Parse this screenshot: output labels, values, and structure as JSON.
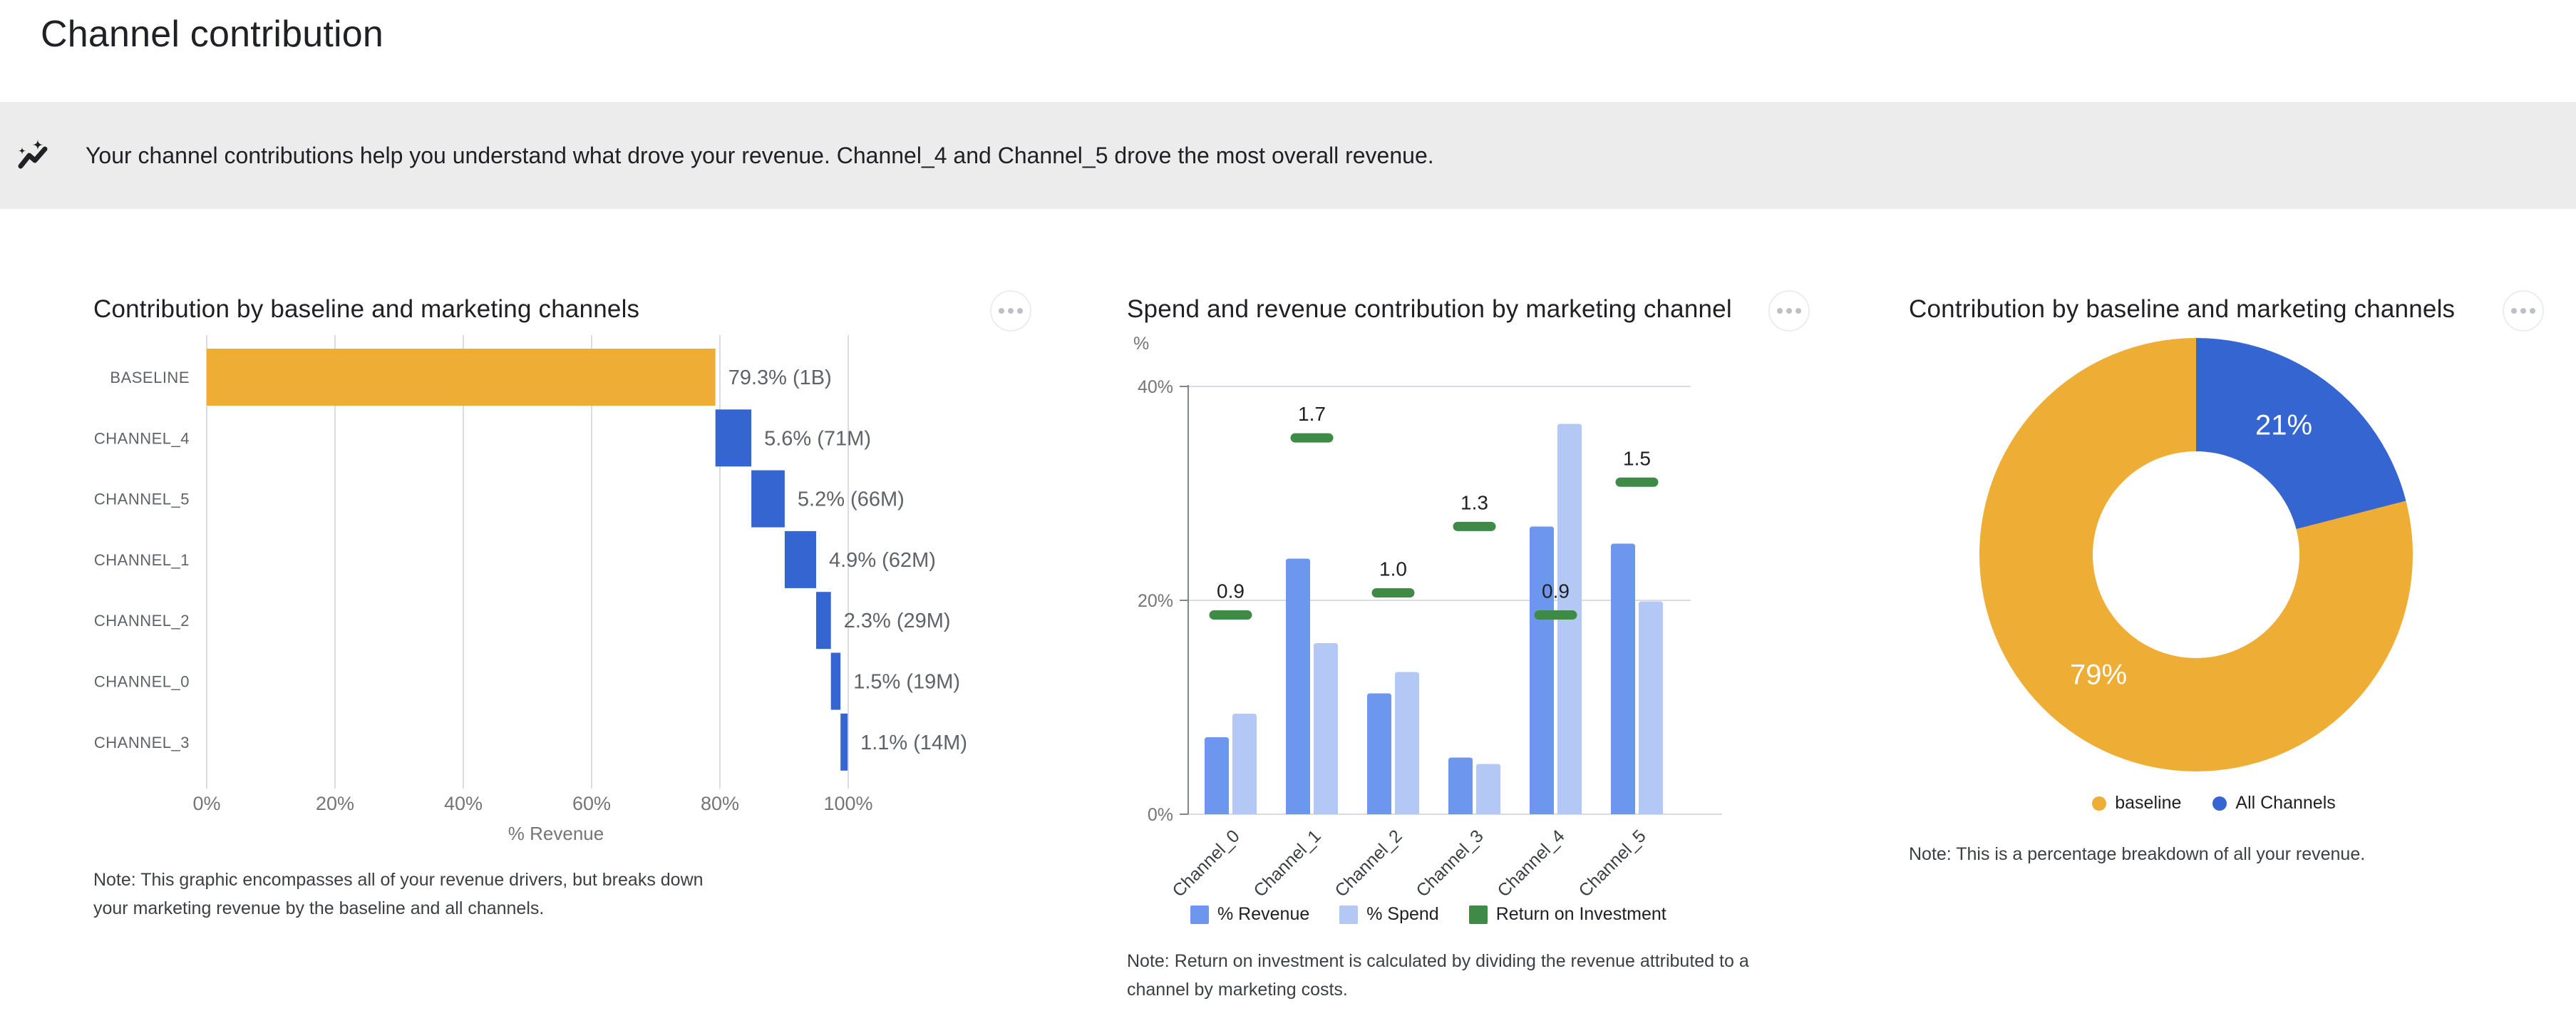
{
  "page": {
    "title": "Channel contribution"
  },
  "insight": {
    "icon": "auto-graph-icon",
    "text": "Your channel contributions help you understand what drove your revenue. Channel_4 and Channel_5 drove the most overall revenue."
  },
  "colors": {
    "banner_bg": "#ECECEC",
    "baseline_yellow": "#EEAD35",
    "channel_blue": "#3465D1",
    "revenue_blue": "#6D96EE",
    "spend_blue": "#B3C8F5",
    "roi_green": "#3E8A46",
    "gridline": "#DADCE0",
    "axis_line": "#80868B",
    "axis_text": "#757575",
    "label_gray": "#5F6368",
    "note_gray": "#3C4043"
  },
  "chart_data": [
    {
      "type": "bar",
      "variant": "horizontal-waterfall",
      "title": "Contribution by baseline and marketing channels",
      "categories": [
        "BASELINE",
        "CHANNEL_4",
        "CHANNEL_5",
        "CHANNEL_1",
        "CHANNEL_2",
        "CHANNEL_0",
        "CHANNEL_3"
      ],
      "values": [
        79.3,
        5.6,
        5.2,
        4.9,
        2.3,
        1.5,
        1.1
      ],
      "value_labels": [
        "79.3% (1B)",
        "5.6% (71M)",
        "5.2% (66M)",
        "4.9% (62M)",
        "2.3% (29M)",
        "1.5% (19M)",
        "1.1% (14M)"
      ],
      "bar_colors": [
        "#EEAD35",
        "#3465D1",
        "#3465D1",
        "#3465D1",
        "#3465D1",
        "#3465D1",
        "#3465D1"
      ],
      "xlabel": "% Revenue",
      "xlim": [
        0,
        100
      ],
      "x_ticks": [
        "0%",
        "20%",
        "40%",
        "60%",
        "80%",
        "100%"
      ],
      "grid": "vertical",
      "note": "Note: This graphic encompasses all of your revenue drivers, but breaks down your marketing revenue by the baseline and all channels."
    },
    {
      "type": "bar",
      "variant": "grouped-vertical-with-roi-markers",
      "title": "Spend and revenue contribution by marketing channel",
      "categories": [
        "Channel_0",
        "Channel_1",
        "Channel_2",
        "Channel_3",
        "Channel_4",
        "Channel_5"
      ],
      "series": [
        {
          "name": "% Revenue",
          "values": [
            7.2,
            23.9,
            11.3,
            5.3,
            26.9,
            25.3
          ],
          "color": "#6D96EE"
        },
        {
          "name": "% Spend",
          "values": [
            9.4,
            16.0,
            13.3,
            4.7,
            36.5,
            19.9
          ],
          "color": "#B3C8F5"
        },
        {
          "name": "Return on Investment",
          "values": [
            0.9,
            1.7,
            1.0,
            1.3,
            0.9,
            1.5
          ],
          "value_labels": [
            "0.9",
            "1.7",
            "1.0",
            "1.3",
            "0.9",
            "1.5"
          ],
          "color": "#3E8A46",
          "style": "dash-marker",
          "pct_per_unit": 20.7
        }
      ],
      "ylabel": "%",
      "ylim": [
        0,
        40
      ],
      "y_ticks": [
        "0%",
        "20%",
        "40%"
      ],
      "grid": "horizontal",
      "legend_position": "bottom",
      "note": "Note: Return on investment is calculated by dividing the revenue attributed to a channel by marketing costs."
    },
    {
      "type": "pie",
      "variant": "donut",
      "title": "Contribution by baseline and marketing channels",
      "labels": [
        "baseline",
        "All Channels"
      ],
      "values": [
        79,
        21
      ],
      "slice_labels": [
        "79%",
        "21%"
      ],
      "colors": [
        "#EEAD35",
        "#3465D1"
      ],
      "legend_position": "bottom",
      "note": "Note: This is a percentage breakdown of all your revenue."
    }
  ]
}
